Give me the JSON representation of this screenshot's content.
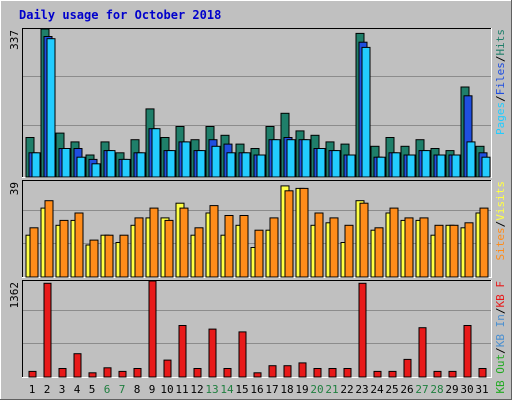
{
  "chart_data": {
    "type": "bar",
    "title": "Daily usage for October 2018",
    "days": [
      1,
      2,
      3,
      4,
      5,
      6,
      7,
      8,
      9,
      10,
      11,
      12,
      13,
      14,
      15,
      16,
      17,
      18,
      19,
      20,
      21,
      22,
      23,
      24,
      25,
      26,
      27,
      28,
      29,
      30,
      31
    ],
    "weekend_days": [
      6,
      7,
      13,
      14,
      20,
      21,
      27,
      28
    ],
    "colors": {
      "hits": "#1f7f6a",
      "files": "#1f4fe0",
      "pages": "#22ccff",
      "visits": "#ffff44",
      "sites": "#ff8c1a",
      "kbin": "#4a8fd0",
      "kbout": "#22aa22",
      "kbf": "#e81a1a",
      "title": "#0000cc",
      "weekday_label": "#000000",
      "weekend_label": "#1f7f3f",
      "panel_bg": "#c0c0c0"
    },
    "panels": [
      {
        "id": "hits_files_pages",
        "axis_max_label": "337",
        "ymax": 337,
        "legend": [
          {
            "label": "Hits",
            "color": "#1f7f6a"
          },
          {
            "label": "Files",
            "color": "#1f4fe0"
          },
          {
            "label": "Pages",
            "color": "#22ccff"
          }
        ],
        "series": [
          {
            "name": "Hits",
            "values": [
              90,
              337,
              100,
              80,
              50,
              80,
              55,
              85,
              155,
              90,
              115,
              85,
              115,
              95,
              75,
              65,
              115,
              145,
              105,
              95,
              80,
              75,
              327,
              70,
              90,
              70,
              85,
              65,
              60,
              205,
              70
            ]
          },
          {
            "name": "Files",
            "values": [
              55,
              320,
              65,
              65,
              40,
              60,
              40,
              55,
              110,
              60,
              80,
              60,
              85,
              75,
              55,
              50,
              85,
              90,
              85,
              65,
              60,
              50,
              307,
              45,
              55,
              50,
              60,
              50,
              50,
              185,
              55
            ]
          },
          {
            "name": "Pages",
            "values": [
              55,
              315,
              65,
              45,
              30,
              60,
              40,
              55,
              110,
              60,
              80,
              60,
              70,
              55,
              55,
              50,
              85,
              85,
              85,
              65,
              60,
              50,
              295,
              45,
              55,
              50,
              60,
              50,
              50,
              80,
              45
            ]
          }
        ]
      },
      {
        "id": "visits_sites",
        "axis_max_label": "39",
        "ymax": 39,
        "legend": [
          {
            "label": "Visits",
            "color": "#ffff44"
          },
          {
            "label": "Sites",
            "color": "#ff8c1a"
          }
        ],
        "series": [
          {
            "name": "Visits",
            "values": [
              17,
              28,
              21,
              23,
              13,
              17,
              14,
              21,
              24,
              24,
              30,
              17,
              26,
              17,
              21,
              12,
              19,
              37,
              36,
              21,
              22,
              14,
              31,
              19,
              26,
              23,
              23,
              17,
              21,
              20,
              26
            ]
          },
          {
            "name": "Sites",
            "values": [
              20,
              31,
              23,
              26,
              15,
              17,
              17,
              24,
              28,
              23,
              28,
              20,
              29,
              25,
              25,
              19,
              24,
              35,
              36,
              26,
              24,
              21,
              30,
              20,
              28,
              24,
              24,
              21,
              21,
              22,
              28
            ]
          }
        ]
      },
      {
        "id": "kbytes",
        "axis_max_label": "1362",
        "ymax": 1362,
        "legend": [
          {
            "label": "KB F",
            "color": "#e81a1a"
          },
          {
            "label": "KB In",
            "color": "#4a8fd0"
          },
          {
            "label": "KB Out",
            "color": "#22aa22"
          }
        ],
        "series": [
          {
            "name": "KB F",
            "values": [
              80,
              1330,
              120,
              330,
              60,
              130,
              80,
              120,
              1362,
              240,
              730,
              120,
              680,
              120,
              640,
              60,
              160,
              160,
              200,
              120,
              120,
              120,
              1330,
              80,
              80,
              250,
              700,
              80,
              80,
              730,
              120
            ]
          }
        ]
      }
    ]
  }
}
